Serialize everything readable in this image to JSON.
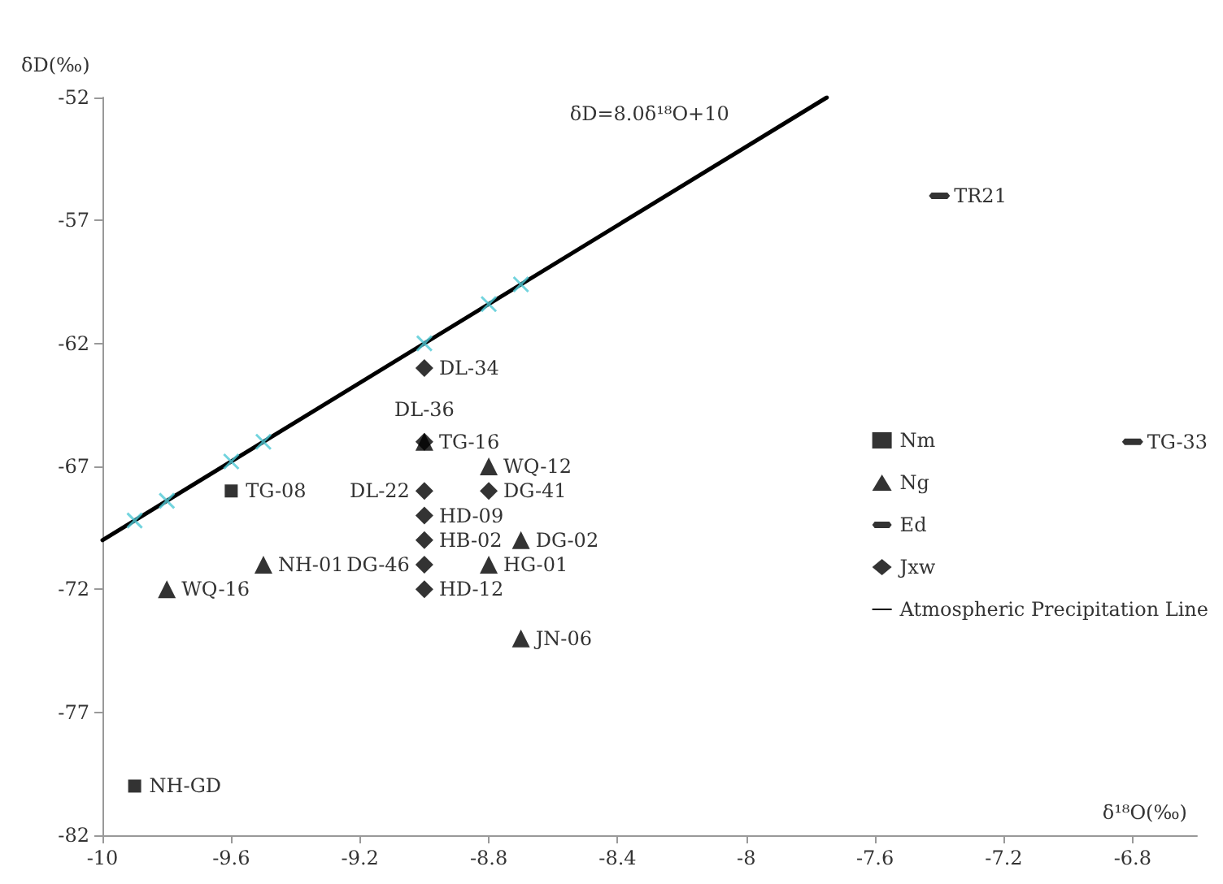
{
  "chart_data": {
    "type": "scatter",
    "xlabel": "δ¹⁸O(‰)",
    "ylabel": "δD(‰)",
    "xlim": [
      -10,
      -6.6
    ],
    "xticks": [
      -10,
      -9.6,
      -9.2,
      -8.8,
      -8.4,
      -8,
      -7.6,
      -7.2,
      -6.8
    ],
    "ylim": [
      -82,
      -52
    ],
    "yticks": [
      -82,
      -77,
      -72,
      -67,
      -62,
      -57,
      -52
    ],
    "grid": false,
    "legend": "right",
    "series": [
      {
        "name": "Nm",
        "color": "#000000",
        "marker": "square",
        "x": [
          -9.6,
          -9.9
        ],
        "values": [
          -68,
          -80
        ]
      },
      {
        "name": "Ng",
        "color": "#000000",
        "marker": "triangle",
        "x": [
          -9.8,
          -9.5,
          -8.8,
          -8.7,
          -8.8,
          -8.7,
          -9.0
        ],
        "values": [
          -72,
          -71,
          -67,
          -70,
          -71,
          -74,
          -66
        ]
      },
      {
        "name": "Ed",
        "color": "#000000",
        "x": [
          -7.4,
          -6.8
        ],
        "values": [
          -56,
          -66
        ]
      },
      {
        "name": "Jxw",
        "color": "#000000",
        "marker": "diamond",
        "x": [
          -9.0,
          -9.0,
          -9.0,
          -9.0,
          -9.0,
          -9.0,
          -9.0,
          -8.8
        ],
        "values": [
          -63,
          -66,
          -68,
          -69,
          -70,
          -71,
          -72,
          -68
        ]
      },
      {
        "color": "#4fc9d6",
        "marker": "cross",
        "x": [
          -9.9,
          -9.8,
          -9.6,
          -9.5,
          -9.0,
          -8.8,
          -8.7
        ],
        "values": [
          -69.2,
          -68.4,
          -66.8,
          -66,
          -62,
          -60.4,
          -59.6
        ]
      },
      {
        "name": "Atmospheric Precipitation Line",
        "type": "line",
        "color": "#000000",
        "marker": "none",
        "line_style": "solid",
        "x": [
          -10,
          -7.75
        ],
        "values": [
          -70,
          -52
        ]
      }
    ],
    "annotations": [
      "δD=8.0δ¹⁸O+10",
      {
        "text": "TG-08",
        "x": -9.6,
        "y": -68
      },
      {
        "text": "NH-GD",
        "x": -9.9,
        "y": -80
      },
      {
        "text": "WQ-16",
        "x": -9.8,
        "y": -72
      },
      {
        "text": "NH-01",
        "x": -9.5,
        "y": -71
      },
      {
        "text": "WQ-12",
        "x": -8.8,
        "y": -67
      },
      {
        "text": "DG-02",
        "x": -8.7,
        "y": -70
      },
      {
        "text": "HG-01",
        "x": -8.8,
        "y": -71
      },
      {
        "text": "JN-06",
        "x": -8.7,
        "y": -74
      },
      {
        "text": "TG-16",
        "x": -9.0,
        "y": -66
      },
      {
        "text": "TR21",
        "x": -7.4,
        "y": -56
      },
      {
        "text": "TG-33",
        "x": -6.8,
        "y": -66
      },
      {
        "text": "DL-34",
        "x": -9.0,
        "y": -63
      },
      {
        "text": "DL-36",
        "x": -9.0,
        "y": -66
      },
      {
        "text": "DL-22",
        "x": -9.0,
        "y": -68
      },
      {
        "text": "HD-09",
        "x": -9.0,
        "y": -69
      },
      {
        "text": "HB-02",
        "x": -9.0,
        "y": -70
      },
      {
        "text": "DG-46",
        "x": -9.0,
        "y": -71
      },
      {
        "text": "HD-12",
        "x": -9.0,
        "y": -72
      },
      {
        "text": "DG-41",
        "x": -8.8,
        "y": -68
      }
    ]
  }
}
